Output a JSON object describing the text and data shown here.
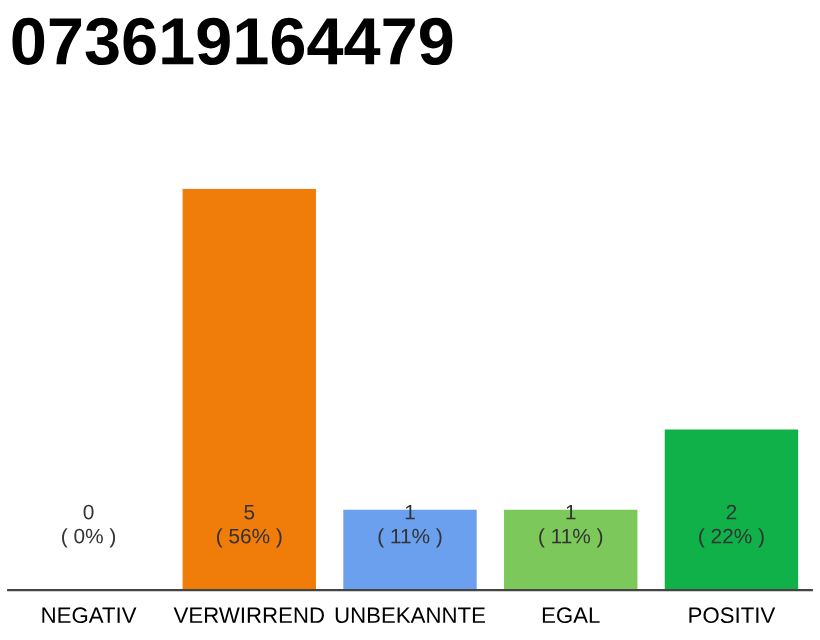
{
  "chart_data": {
    "type": "bar",
    "title": "073619164479",
    "categories": [
      "NEGATIV",
      "VERWIRREND",
      "UNBEKANNTE",
      "EGAL",
      "POSITIV"
    ],
    "values": [
      0,
      5,
      1,
      1,
      2
    ],
    "colors": [
      "#cccccc",
      "#f07d0a",
      "#6aa0ee",
      "#7dc85a",
      "#10b148"
    ],
    "value_labels": [
      "0\n( 0% )",
      "5\n( 56% )",
      "1\n( 11% )",
      "1\n( 11% )",
      "2\n( 22% )"
    ],
    "tick_labels": "x",
    "grid": false,
    "legend": false
  }
}
